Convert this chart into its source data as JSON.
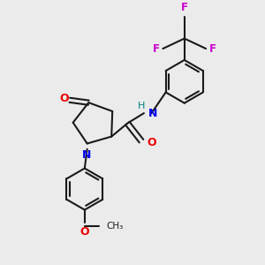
{
  "background_color": "#ebebeb",
  "bond_color": "#1a1a1a",
  "N_color": "#0000ee",
  "O_color": "#ee0000",
  "F_color": "#cc00cc",
  "H_color": "#008080",
  "figsize": [
    3.0,
    3.0
  ],
  "dpi": 100,
  "xlim": [
    0,
    10
  ],
  "ylim": [
    0,
    10
  ]
}
